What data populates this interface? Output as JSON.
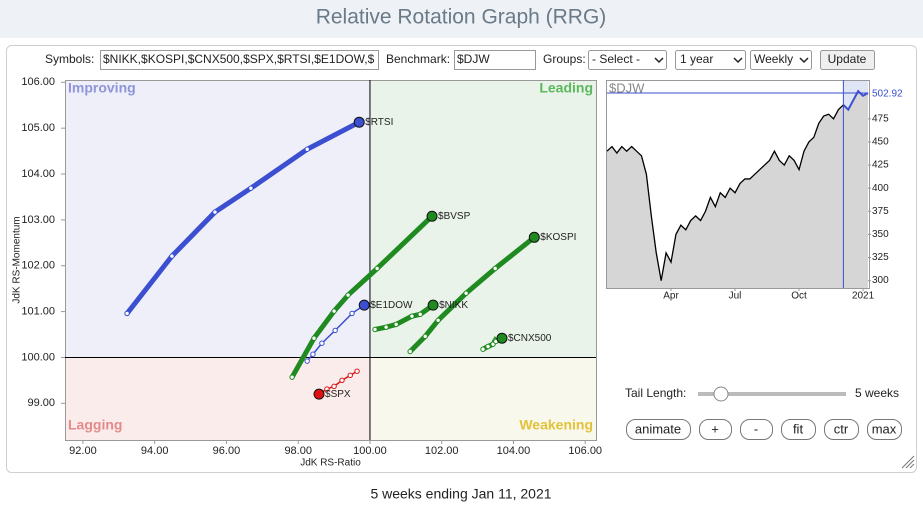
{
  "header": {
    "title": "Relative Rotation Graph (RRG)"
  },
  "controls": {
    "symbols_label": "Symbols:",
    "symbols": "$NIKK,$KOSPI,$CNX500,$SPX,$RTSI,$E1DOW,$",
    "benchmark_label": "Benchmark:",
    "benchmark": "$DJW",
    "groups_label": "Groups:",
    "groups": "- Select -",
    "period": "1 year",
    "frequency": "Weekly",
    "update_button": "Update"
  },
  "chart_data": {
    "type": "rrg",
    "x_label": "JdK RS-Ratio",
    "y_label": "JdK RS-Momentum",
    "xlim": [
      91.5,
      106.3
    ],
    "ylim": [
      98.2,
      106.05
    ],
    "xticks": [
      {
        "value": 92,
        "label": "92.00"
      },
      {
        "value": 94,
        "label": "94.00"
      },
      {
        "value": 96,
        "label": "96.00"
      },
      {
        "value": 98,
        "label": "98.00"
      },
      {
        "value": 100,
        "label": "100.00"
      },
      {
        "value": 102,
        "label": "102.00"
      },
      {
        "value": 104,
        "label": "104.00"
      },
      {
        "value": 106,
        "label": "106.00"
      }
    ],
    "yticks": [
      {
        "value": 99,
        "label": "99.00"
      },
      {
        "value": 100,
        "label": "100.00"
      },
      {
        "value": 101,
        "label": "101.00"
      },
      {
        "value": 102,
        "label": "102.00"
      },
      {
        "value": 103,
        "label": "103.00"
      },
      {
        "value": 104,
        "label": "104.00"
      },
      {
        "value": 105,
        "label": "105.00"
      },
      {
        "value": 106,
        "label": "106.00"
      }
    ],
    "center": {
      "x": 100,
      "y": 100
    },
    "quadrants": [
      {
        "label": "Improving",
        "fill": "#eeeff9",
        "color": "#8f95d8"
      },
      {
        "label": "Leading",
        "fill": "#eaf3ea",
        "color": "#5cb85c"
      },
      {
        "label": "Lagging",
        "fill": "#fbecec",
        "color": "#e58a8a"
      },
      {
        "label": "Weakening",
        "fill": "#f8f8ec",
        "color": "#e3c23a"
      }
    ],
    "series": [
      {
        "name": "$RTSI",
        "color": "#3b4fd0",
        "x": [
          93.23,
          94.48,
          95.68,
          96.68,
          98.25,
          99.7
        ],
        "y": [
          100.96,
          102.21,
          103.17,
          103.69,
          104.54,
          105.13
        ]
      },
      {
        "name": "$BVSP",
        "color": "#1f8a1f",
        "x": [
          97.83,
          98.44,
          99.0,
          99.39,
          100.2,
          101.73
        ],
        "y": [
          99.57,
          100.42,
          101.01,
          101.36,
          101.94,
          103.08
        ]
      },
      {
        "name": "$KOSPI",
        "color": "#1f8a1f",
        "x": [
          101.12,
          101.54,
          101.9,
          102.68,
          103.49,
          104.58
        ],
        "y": [
          100.13,
          100.46,
          100.81,
          101.4,
          101.94,
          102.62
        ]
      },
      {
        "name": "$NIKK",
        "color": "#1f8a1f",
        "x": [
          100.14,
          100.45,
          100.73,
          101.17,
          101.4,
          101.76
        ],
        "y": [
          100.61,
          100.66,
          100.72,
          100.9,
          100.94,
          101.14
        ]
      },
      {
        "name": "$CNX500",
        "color": "#1f8a1f",
        "x": [
          103.15,
          103.29,
          103.43,
          103.49,
          103.51,
          103.68
        ],
        "y": [
          100.18,
          100.24,
          100.29,
          100.37,
          100.35,
          100.42
        ]
      },
      {
        "name": "$E1DOW",
        "color": "#3b4fd0",
        "x": [
          98.25,
          98.41,
          98.66,
          99.03,
          99.5,
          99.84
        ],
        "y": [
          99.92,
          100.07,
          100.31,
          100.59,
          100.96,
          101.14
        ]
      },
      {
        "name": "$SPX",
        "color": "#e01010",
        "x": [
          99.64,
          99.45,
          99.22,
          99.0,
          98.8,
          98.58
        ],
        "y": [
          99.7,
          99.61,
          99.5,
          99.37,
          99.31,
          99.2
        ]
      }
    ]
  },
  "benchmark_chart": {
    "type": "line",
    "label": "$DJW",
    "color": "#000000",
    "values": [
      440,
      445,
      438,
      445,
      440,
      445,
      440,
      435,
      415,
      370,
      330,
      300,
      330,
      320,
      350,
      360,
      355,
      365,
      370,
      365,
      375,
      390,
      380,
      395,
      390,
      400,
      395,
      405,
      410,
      410,
      415,
      420,
      425,
      430,
      440,
      430,
      425,
      435,
      430,
      420,
      440,
      450,
      455,
      470,
      478,
      480,
      475,
      485,
      490,
      485,
      495,
      505,
      500,
      502.92
    ],
    "xlim": [
      0,
      53
    ],
    "ylim": [
      292,
      517
    ],
    "xticks": [
      {
        "value": 13,
        "label": "Apr"
      },
      {
        "value": 26,
        "label": "Jul"
      },
      {
        "value": 39,
        "label": "Oct"
      },
      {
        "value": 52,
        "label": "2021"
      }
    ],
    "yticks": [
      300,
      325,
      350,
      375,
      400,
      425,
      450,
      475
    ]
  },
  "tail": {
    "label": "Tail Length:",
    "value": "5 weeks"
  },
  "buttons": [
    "animate",
    "+",
    "-",
    "fit",
    "ctr",
    "max"
  ],
  "footer": "5 weeks ending Jan 11, 2021"
}
